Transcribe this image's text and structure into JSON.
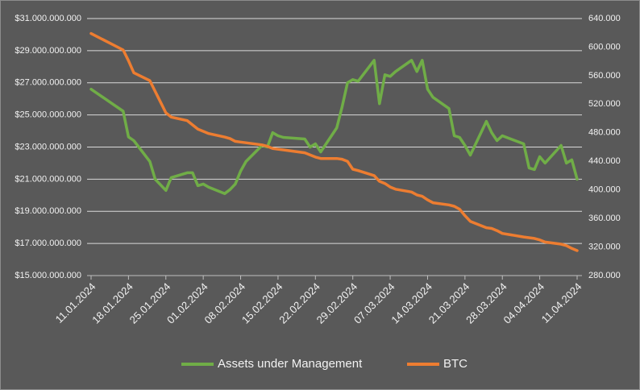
{
  "chart_data": {
    "type": "line",
    "x": [
      "11.01.2024",
      "17.01.2024",
      "18.01.2024",
      "19.01.2024",
      "22.01.2024",
      "23.01.2024",
      "25.01.2024",
      "26.01.2024",
      "29.01.2024",
      "30.01.2024",
      "31.01.2024",
      "01.02.2024",
      "02.02.2024",
      "05.02.2024",
      "06.02.2024",
      "07.02.2024",
      "08.02.2024",
      "09.02.2024",
      "12.02.2024",
      "13.02.2024",
      "14.02.2024",
      "15.02.2024",
      "16.02.2024",
      "20.02.2024",
      "21.02.2024",
      "22.02.2024",
      "23.02.2024",
      "26.02.2024",
      "27.02.2024",
      "28.02.2024",
      "29.02.2024",
      "01.03.2024",
      "04.03.2024",
      "05.03.2024",
      "06.03.2024",
      "07.03.2024",
      "08.03.2024",
      "11.03.2024",
      "12.03.2024",
      "13.03.2024",
      "14.03.2024",
      "15.03.2024",
      "18.03.2024",
      "19.03.2024",
      "20.03.2024",
      "21.03.2024",
      "22.03.2024",
      "25.03.2024",
      "26.03.2024",
      "27.03.2024",
      "28.03.2024",
      "01.04.2024",
      "02.04.2024",
      "03.04.2024",
      "04.04.2024",
      "05.04.2024",
      "08.04.2024",
      "09.04.2024",
      "10.04.2024",
      "11.04.2024"
    ],
    "xticks": [
      "11.01.2024",
      "18.01.2024",
      "25.01.2024",
      "01.02.2024",
      "08.02.2024",
      "15.02.2024",
      "22.02.2024",
      "29.02.2024",
      "07.03.2024",
      "14.03.2024",
      "21.03.2024",
      "28.03.2024",
      "04.04.2024",
      "11.04.2024"
    ],
    "series": [
      {
        "name": "Assets under Management",
        "color": "#70ad47",
        "axis": "y",
        "values": [
          26600000000,
          25230000000,
          23630000000,
          23400000000,
          22100000000,
          21000000000,
          20300000000,
          21100000000,
          21400000000,
          21400000000,
          20600000000,
          20700000000,
          20500000000,
          20100000000,
          20350000000,
          20700000000,
          21500000000,
          22100000000,
          23100000000,
          23000000000,
          23900000000,
          23700000000,
          23600000000,
          23500000000,
          23000000000,
          23200000000,
          22700000000,
          24200000000,
          25500000000,
          27000000000,
          27200000000,
          27100000000,
          28400000000,
          25700000000,
          27500000000,
          27400000000,
          27700000000,
          28400000000,
          27700000000,
          28400000000,
          26600000000,
          26100000000,
          25400000000,
          23700000000,
          23600000000,
          23100000000,
          22500000000,
          24600000000,
          23900000000,
          23400000000,
          23700000000,
          23200000000,
          21700000000,
          21600000000,
          22400000000,
          22000000000,
          23100000000,
          22000000000,
          22200000000,
          21000000000
        ]
      },
      {
        "name": "BTC",
        "color": "#ed7d31",
        "axis": "y2",
        "values": [
          619000,
          596000,
          581000,
          564000,
          553000,
          538000,
          508000,
          502000,
          497000,
          491000,
          485000,
          482000,
          479000,
          474000,
          472000,
          468000,
          467000,
          466000,
          463000,
          461000,
          458000,
          457000,
          456000,
          452000,
          449000,
          446000,
          444000,
          444000,
          443000,
          440000,
          429000,
          427000,
          420000,
          412000,
          409000,
          404000,
          401000,
          397000,
          393000,
          391000,
          386000,
          382000,
          379000,
          377000,
          373000,
          364000,
          356000,
          347000,
          346000,
          343000,
          339000,
          334000,
          333000,
          332000,
          330000,
          327000,
          324000,
          322000,
          318000,
          315000
        ]
      }
    ],
    "ylim": [
      15000000000,
      31000000000
    ],
    "yticks": [
      {
        "value": 15000000000,
        "label": "$15.000.000.000"
      },
      {
        "value": 17000000000,
        "label": "$17.000.000.000"
      },
      {
        "value": 19000000000,
        "label": "$19.000.000.000"
      },
      {
        "value": 21000000000,
        "label": "$21.000.000.000"
      },
      {
        "value": 23000000000,
        "label": "$23.000.000.000"
      },
      {
        "value": 25000000000,
        "label": "$25.000.000.000"
      },
      {
        "value": 27000000000,
        "label": "$27.000.000.000"
      },
      {
        "value": 29000000000,
        "label": "$29.000.000.000"
      },
      {
        "value": 31000000000,
        "label": "$31.000.000.000"
      }
    ],
    "y2lim": [
      280000,
      640000
    ],
    "y2ticks": [
      {
        "value": 280000,
        "label": "280.000"
      },
      {
        "value": 320000,
        "label": "320.000"
      },
      {
        "value": 360000,
        "label": "360.000"
      },
      {
        "value": 400000,
        "label": "400.000"
      },
      {
        "value": 440000,
        "label": "440.000"
      },
      {
        "value": 480000,
        "label": "480.000"
      },
      {
        "value": 520000,
        "label": "520.000"
      },
      {
        "value": 560000,
        "label": "560.000"
      },
      {
        "value": 600000,
        "label": "600.000"
      },
      {
        "value": 640000,
        "label": "640.000"
      }
    ],
    "grid": true,
    "legend": "bottom"
  }
}
